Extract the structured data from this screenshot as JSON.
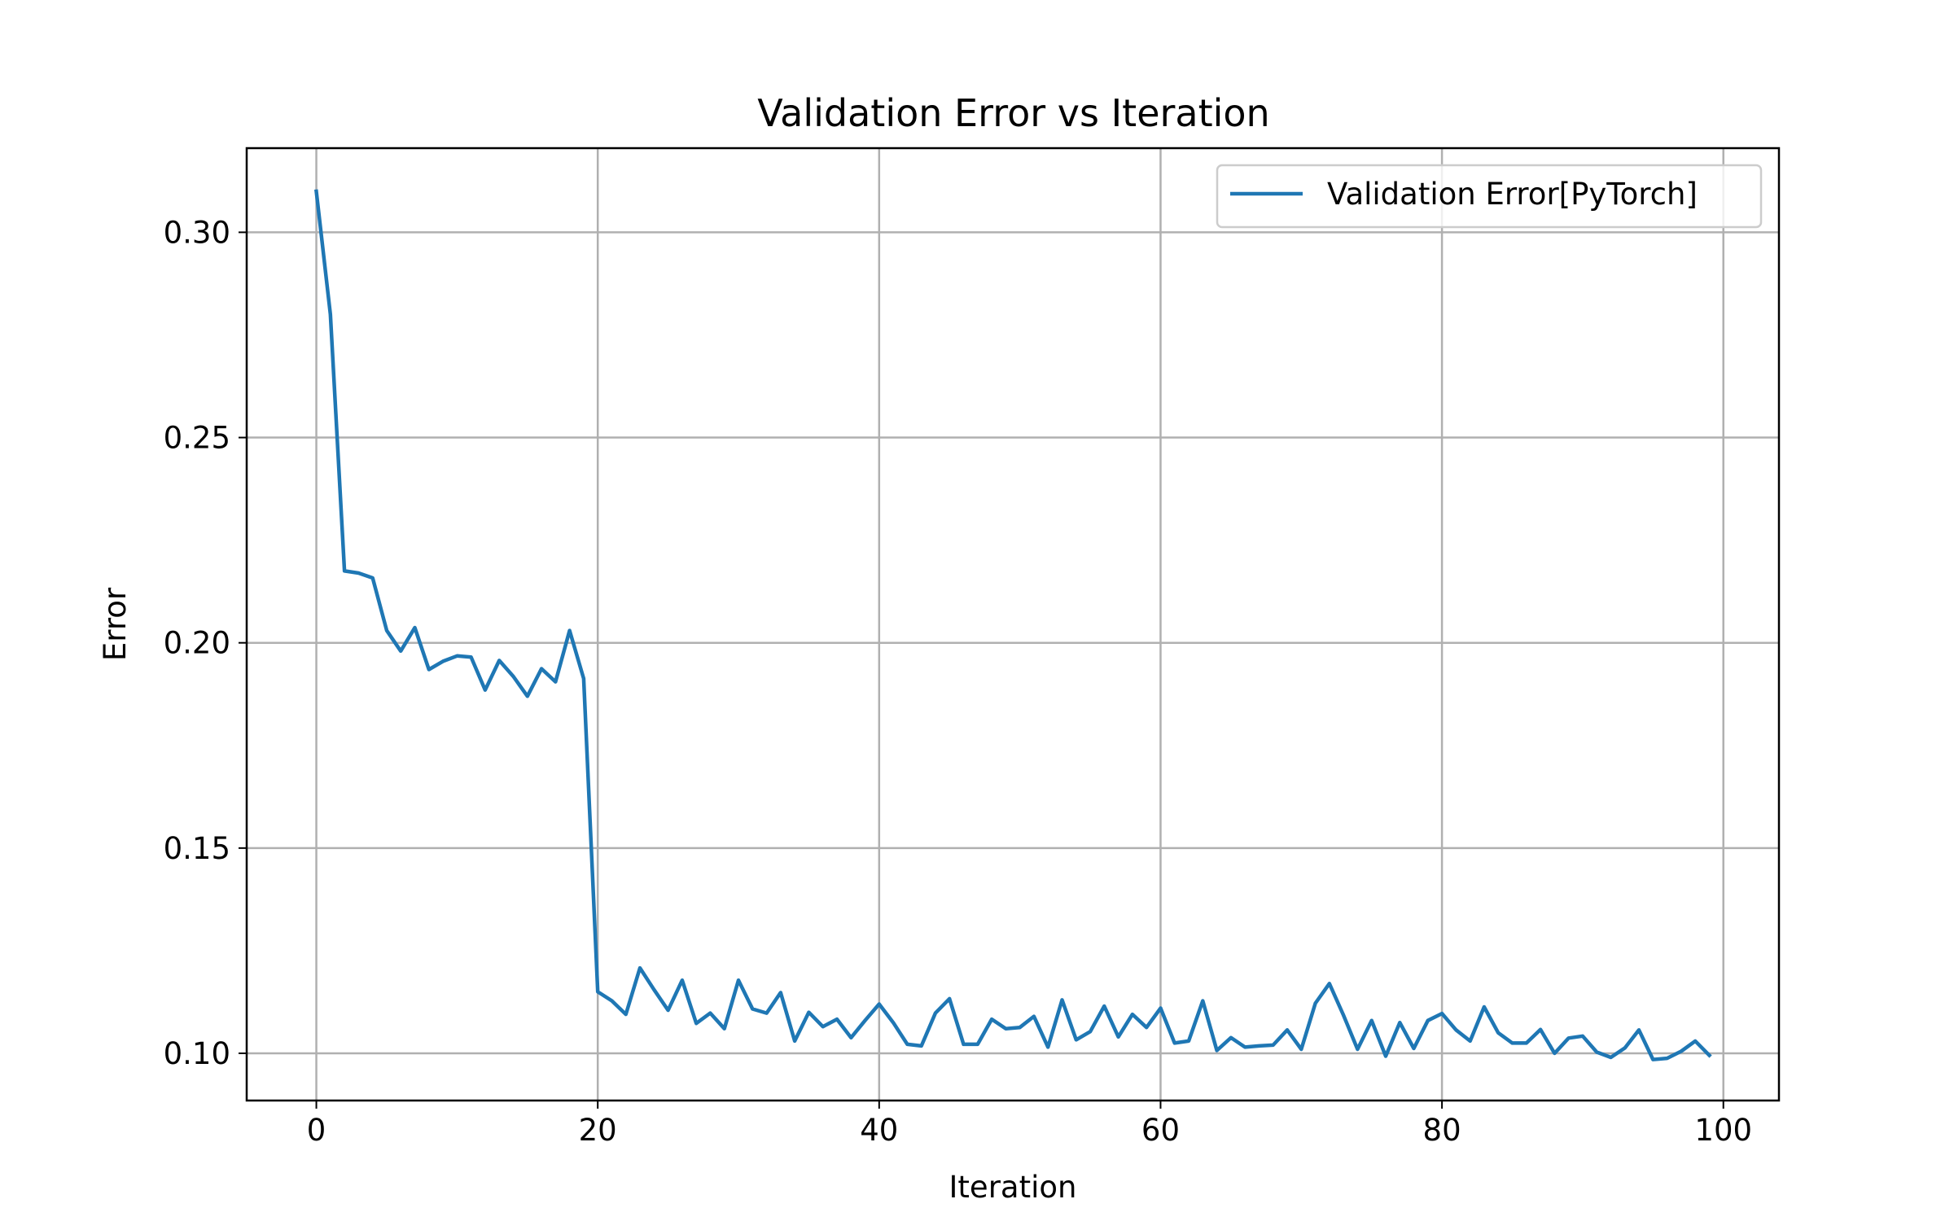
{
  "chart_data": {
    "type": "line",
    "title": "Validation Error vs Iteration",
    "xlabel": "Iteration",
    "ylabel": "Error",
    "xlim": [
      -4.95,
      103.95
    ],
    "ylim": [
      0.0885,
      0.3205
    ],
    "xticks": [
      0,
      20,
      40,
      60,
      80,
      100
    ],
    "yticks": [
      0.1,
      0.15,
      0.2,
      0.25,
      0.3
    ],
    "xtick_labels": [
      "0",
      "20",
      "40",
      "60",
      "80",
      "100"
    ],
    "ytick_labels": [
      "0.10",
      "0.15",
      "0.20",
      "0.25",
      "0.30"
    ],
    "grid": true,
    "legend_position": "top-right",
    "series": [
      {
        "name": "Validation Error[PyTorch]",
        "color": "#1f77b4",
        "x": [
          0,
          1,
          2,
          3,
          4,
          5,
          6,
          7,
          8,
          9,
          10,
          11,
          12,
          13,
          14,
          15,
          16,
          17,
          18,
          19,
          20,
          21,
          22,
          23,
          24,
          25,
          26,
          27,
          28,
          29,
          30,
          31,
          32,
          33,
          34,
          35,
          36,
          37,
          38,
          39,
          40,
          41,
          42,
          43,
          44,
          45,
          46,
          47,
          48,
          49,
          50,
          51,
          52,
          53,
          54,
          55,
          56,
          57,
          58,
          59,
          60,
          61,
          62,
          63,
          64,
          65,
          66,
          67,
          68,
          69,
          70,
          71,
          72,
          73,
          74,
          75,
          76,
          77,
          78,
          79,
          80,
          81,
          82,
          83,
          84,
          85,
          86,
          87,
          88,
          89,
          90,
          91,
          92,
          93,
          94,
          95,
          96,
          97,
          98,
          99
        ],
        "values": [
          0.31,
          0.28,
          0.2175,
          0.217,
          0.2158,
          0.203,
          0.198,
          0.2037,
          0.1935,
          0.1955,
          0.1968,
          0.1965,
          0.1885,
          0.1957,
          0.1918,
          0.187,
          0.1937,
          0.1905,
          0.203,
          0.1913,
          0.115,
          0.1128,
          0.1095,
          0.1208,
          0.1155,
          0.1105,
          0.1178,
          0.1073,
          0.1098,
          0.106,
          0.1178,
          0.1108,
          0.1098,
          0.1148,
          0.103,
          0.11,
          0.1065,
          0.1083,
          0.1038,
          0.108,
          0.112,
          0.1075,
          0.1022,
          0.1018,
          0.1098,
          0.1133,
          0.1022,
          0.1022,
          0.1083,
          0.106,
          0.1063,
          0.109,
          0.1015,
          0.113,
          0.1033,
          0.1053,
          0.1115,
          0.104,
          0.1095,
          0.1063,
          0.111,
          0.1025,
          0.103,
          0.1128,
          0.1007,
          0.1038,
          0.1015,
          0.1018,
          0.102,
          0.1057,
          0.101,
          0.1122,
          0.117,
          0.1093,
          0.101,
          0.108,
          0.0993,
          0.1075,
          0.1012,
          0.108,
          0.1097,
          0.1057,
          0.103,
          0.1113,
          0.105,
          0.1025,
          0.1025,
          0.1058,
          0.1,
          0.1037,
          0.1042,
          0.1003,
          0.099,
          0.1013,
          0.1057,
          0.0985,
          0.0988,
          0.1005,
          0.103,
          0.0995
        ]
      }
    ]
  }
}
